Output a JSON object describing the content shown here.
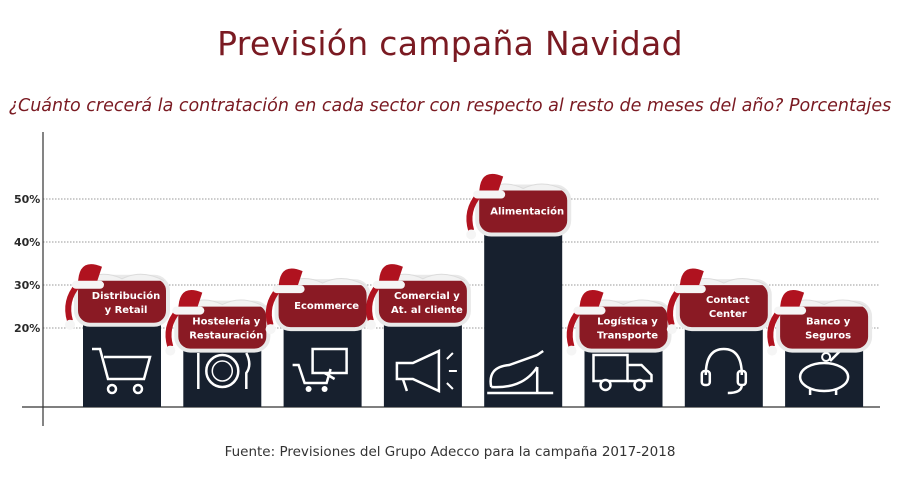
{
  "chart_data": {
    "type": "bar",
    "title": "Previsión campaña Navidad",
    "subtitle": "¿Cuánto crecerá la contratación en cada sector con respecto al resto de meses del año? Porcentajes",
    "source": "Fuente: Previsiones del Grupo Adecco para la campaña 2017-2018",
    "ylim": [
      0,
      50
    ],
    "yticks": [
      20,
      30,
      40,
      50
    ],
    "ytick_labels": [
      "20%",
      "30%",
      "40%",
      "50%"
    ],
    "grid": true,
    "bar_color": "#17202e",
    "sign_color": "#8a1a24",
    "categories": [
      [
        "Distribución",
        "y Retail"
      ],
      [
        "Hostelería y",
        "Restauración"
      ],
      [
        "Ecommerce"
      ],
      [
        "Comercial y",
        "At. al cliente"
      ],
      [
        "Alimentación"
      ],
      [
        "Logística y",
        "Transporte"
      ],
      [
        "Contact",
        "Center"
      ],
      [
        "Banco y",
        "Seguros"
      ]
    ],
    "icons": [
      "cart-icon",
      "plate-cutlery-icon",
      "computer-cart-icon",
      "megaphone-icon",
      "ham-icon",
      "truck-icon",
      "headset-icon",
      "piggy-bank-icon"
    ],
    "values": [
      24,
      18,
      23,
      24,
      45,
      18,
      23,
      18
    ]
  }
}
